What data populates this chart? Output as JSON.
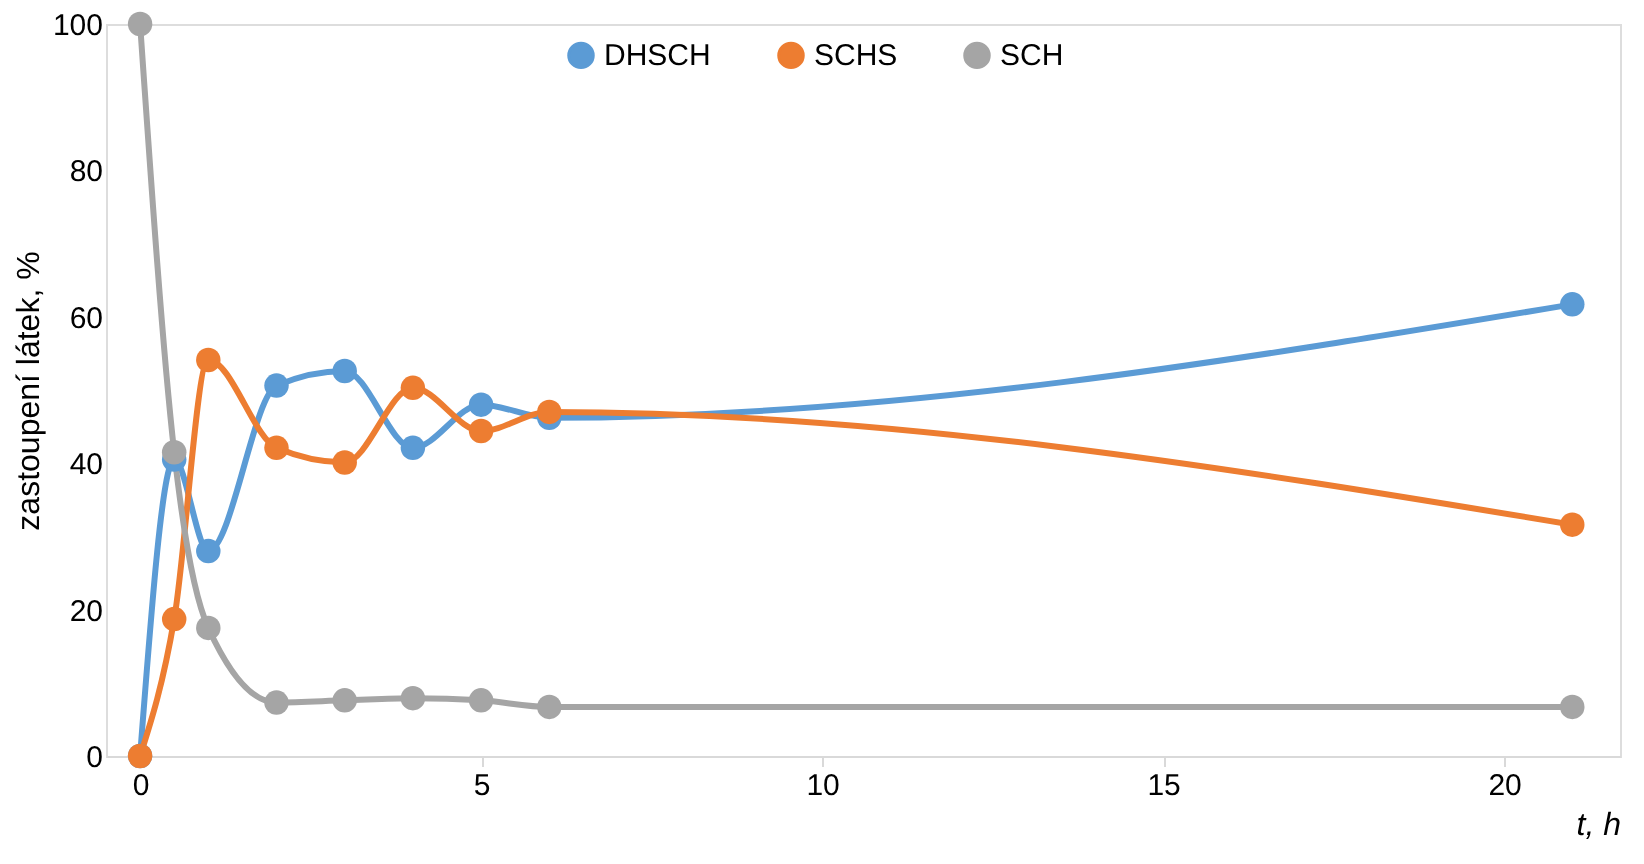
{
  "chart_data": {
    "type": "line",
    "xlabel": "t, h",
    "ylabel": "zastoupení látek, %",
    "x": [
      0,
      0.5,
      1,
      2,
      3,
      4,
      5,
      6,
      21
    ],
    "series": [
      {
        "name": "DHSCH",
        "color": "#5b9bd5",
        "values": [
          0,
          40.5,
          28,
          50.6,
          52.6,
          42.1,
          48,
          46.2,
          61.7
        ]
      },
      {
        "name": "SCHS",
        "color": "#ed7d31",
        "values": [
          0,
          18.7,
          54.1,
          42.1,
          40.1,
          50.3,
          44.4,
          47,
          31.6
        ]
      },
      {
        "name": "SCH",
        "color": "#a5a5a5",
        "values": [
          100,
          41.5,
          17.5,
          7.3,
          7.6,
          7.9,
          7.6,
          6.7,
          6.7
        ]
      }
    ],
    "xlim": [
      -0.5,
      21.7
    ],
    "xticks": [
      0,
      5,
      10,
      15,
      20
    ],
    "ylim": [
      0,
      100
    ],
    "yticks": [
      0,
      20,
      40,
      60,
      80,
      100
    ],
    "grid": false,
    "legend": "top",
    "marker": "circle",
    "line_style": "solid"
  }
}
